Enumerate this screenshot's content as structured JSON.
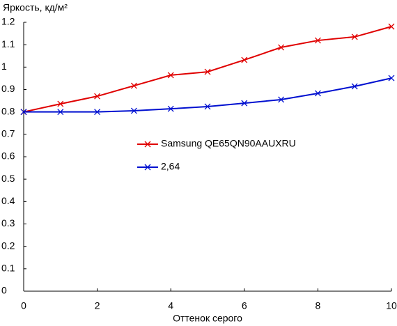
{
  "chart_data": {
    "type": "line",
    "y_label": "Яркость, кд/м²",
    "x_label": "Оттенок серого",
    "x": [
      0,
      1,
      2,
      3,
      4,
      5,
      6,
      7,
      8,
      9,
      10
    ],
    "series": [
      {
        "name": "Samsung QE65QN90AAUXRU",
        "color": "#e00000",
        "values": [
          0.8,
          0.836,
          0.87,
          0.917,
          0.964,
          0.979,
          1.032,
          1.088,
          1.119,
          1.135,
          1.181
        ]
      },
      {
        "name": "2,64",
        "color": "#0010d0",
        "values": [
          0.8,
          0.8,
          0.8,
          0.805,
          0.814,
          0.824,
          0.839,
          0.855,
          0.883,
          0.914,
          0.951
        ]
      }
    ],
    "xlim": [
      0,
      10
    ],
    "xticks": [
      0,
      2,
      4,
      6,
      8,
      10
    ],
    "ylim": [
      0,
      1.2
    ],
    "yticks": [
      0,
      0.1,
      0.2,
      0.3,
      0.4,
      0.5,
      0.6,
      0.7,
      0.8,
      0.9,
      1,
      1.1,
      1.2
    ],
    "grid": false
  }
}
